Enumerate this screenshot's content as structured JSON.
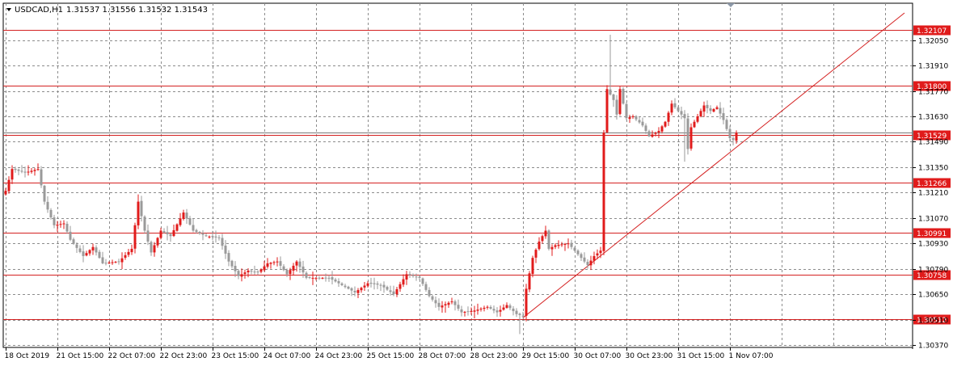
{
  "header": {
    "symbol": "USDCAD,H1",
    "ohlc": "1.31537 1.31556 1.31532 1.31543"
  },
  "colors": {
    "bull": "#e11b1b",
    "bear": "#9a9a9a",
    "level_line": "#d42121",
    "label_bg": "#e01b1b",
    "grid": "#8c8c8c"
  },
  "chart_data": {
    "type": "candlestick",
    "ylim": [
      1.3037,
      1.322
    ],
    "y_ticks": [
      "1.32050",
      "1.31910",
      "1.31770",
      "1.31630",
      "1.31490",
      "1.31350",
      "1.31210",
      "1.31070",
      "1.30930",
      "1.30790",
      "1.30650",
      "1.30510",
      "1.30370"
    ],
    "x_labels": [
      "18 Oct 2019",
      "21 Oct 15:00",
      "22 Oct 07:00",
      "22 Oct 23:00",
      "23 Oct 15:00",
      "24 Oct 07:00",
      "24 Oct 23:00",
      "25 Oct 15:00",
      "28 Oct 07:00",
      "28 Oct 23:00",
      "29 Oct 15:00",
      "30 Oct 07:00",
      "30 Oct 23:00",
      "31 Oct 15:00",
      "1 Nov 07:00"
    ],
    "x_label_index": [
      0,
      16,
      32,
      48,
      64,
      80,
      96,
      112,
      128,
      144,
      160,
      176,
      192,
      208,
      224
    ],
    "levels": [
      {
        "value": 1.32107,
        "label": "1.32107"
      },
      {
        "value": 1.318,
        "label": "1.31800"
      },
      {
        "value": 1.31529,
        "label": "1.31529"
      },
      {
        "value": 1.31266,
        "label": "1.31266"
      },
      {
        "value": 1.30991,
        "label": "1.30991"
      },
      {
        "value": 1.30758,
        "label": "1.30758"
      },
      {
        "value": 1.30512,
        "label": "1.30512"
      }
    ],
    "current_price": 1.31543,
    "trendline": {
      "from": [
        160,
        1.3052
      ],
      "to": [
        278,
        1.322
      ]
    },
    "anchors": [
      [
        0,
        1.3122
      ],
      [
        2,
        1.3134
      ],
      [
        6,
        1.3132
      ],
      [
        10,
        1.3134
      ],
      [
        12,
        1.3116
      ],
      [
        15,
        1.3103
      ],
      [
        18,
        1.3104
      ],
      [
        20,
        1.3095
      ],
      [
        24,
        1.3086
      ],
      [
        27,
        1.3091
      ],
      [
        30,
        1.3082
      ],
      [
        35,
        1.3083
      ],
      [
        39,
        1.309
      ],
      [
        41,
        1.3116
      ],
      [
        43,
        1.31
      ],
      [
        45,
        1.3088
      ],
      [
        48,
        1.31
      ],
      [
        51,
        1.3097
      ],
      [
        55,
        1.311
      ],
      [
        58,
        1.31
      ],
      [
        62,
        1.3097
      ],
      [
        66,
        1.3096
      ],
      [
        69,
        1.3083
      ],
      [
        72,
        1.3075
      ],
      [
        75,
        1.3078
      ],
      [
        78,
        1.3077
      ],
      [
        81,
        1.3082
      ],
      [
        84,
        1.3083
      ],
      [
        87,
        1.3076
      ],
      [
        90,
        1.3083
      ],
      [
        93,
        1.3074
      ],
      [
        96,
        1.3074
      ],
      [
        100,
        1.3074
      ],
      [
        104,
        1.307
      ],
      [
        108,
        1.3066
      ],
      [
        112,
        1.3071
      ],
      [
        116,
        1.307
      ],
      [
        120,
        1.3065
      ],
      [
        124,
        1.3076
      ],
      [
        128,
        1.3074
      ],
      [
        131,
        1.3064
      ],
      [
        134,
        1.3058
      ],
      [
        138,
        1.3061
      ],
      [
        141,
        1.3055
      ],
      [
        145,
        1.3056
      ],
      [
        149,
        1.3058
      ],
      [
        152,
        1.3055
      ],
      [
        155,
        1.3059
      ],
      [
        158,
        1.3054
      ],
      [
        160,
        1.3053
      ],
      [
        161,
        1.3068
      ],
      [
        163,
        1.3085
      ],
      [
        165,
        1.3094
      ],
      [
        167,
        1.31
      ],
      [
        168,
        1.309
      ],
      [
        170,
        1.3092
      ],
      [
        174,
        1.3093
      ],
      [
        177,
        1.3087
      ],
      [
        180,
        1.3081
      ],
      [
        182,
        1.3086
      ],
      [
        184,
        1.3089
      ],
      [
        185,
        1.3154
      ],
      [
        186,
        1.3178
      ],
      [
        188,
        1.3172
      ],
      [
        189,
        1.3164
      ],
      [
        190,
        1.3178
      ],
      [
        192,
        1.3162
      ],
      [
        194,
        1.3163
      ],
      [
        197,
        1.3158
      ],
      [
        199,
        1.3152
      ],
      [
        202,
        1.3155
      ],
      [
        204,
        1.316
      ],
      [
        206,
        1.317
      ],
      [
        208,
        1.3166
      ],
      [
        210,
        1.3162
      ],
      [
        211,
        1.3145
      ],
      [
        212,
        1.3157
      ],
      [
        214,
        1.3163
      ],
      [
        216,
        1.3169
      ],
      [
        218,
        1.3166
      ],
      [
        220,
        1.3168
      ],
      [
        222,
        1.3161
      ],
      [
        224,
        1.3151
      ],
      [
        225,
        1.315
      ],
      [
        226,
        1.3154
      ]
    ]
  }
}
